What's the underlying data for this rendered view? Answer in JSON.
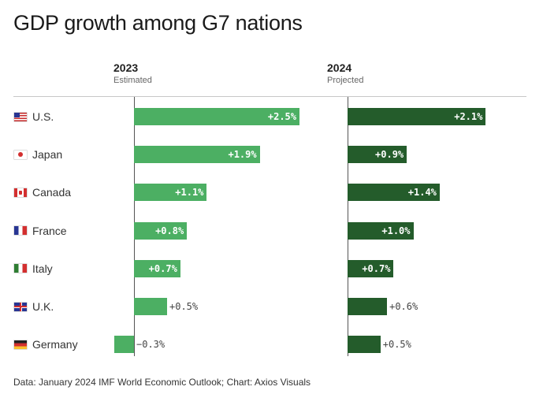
{
  "title": "GDP growth among G7 nations",
  "source": "Data: January 2024 IMF World Economic Outlook; Chart: Axios Visuals",
  "colors": {
    "bar_2023": "#4caf63",
    "bar_2024": "#245c2b"
  },
  "chart_data": {
    "type": "bar",
    "orientation": "horizontal",
    "title": "GDP growth among G7 nations",
    "categories": [
      "U.S.",
      "Japan",
      "Canada",
      "France",
      "Italy",
      "U.K.",
      "Germany"
    ],
    "flags": [
      "us-flag-icon",
      "japan-flag-icon",
      "canada-flag-icon",
      "france-flag-icon",
      "italy-flag-icon",
      "uk-flag-icon",
      "germany-flag-icon"
    ],
    "series": [
      {
        "name": "2023",
        "subtitle": "Estimated",
        "color": "#4caf63",
        "values": [
          2.5,
          1.9,
          1.1,
          0.8,
          0.7,
          0.5,
          -0.3
        ],
        "labels": [
          "+2.5%",
          "+1.9%",
          "+1.1%",
          "+0.8%",
          "+0.7%",
          "+0.5%",
          "−0.3%"
        ]
      },
      {
        "name": "2024",
        "subtitle": "Projected",
        "color": "#245c2b",
        "values": [
          2.1,
          0.9,
          1.4,
          1.0,
          0.7,
          0.6,
          0.5
        ],
        "labels": [
          "+2.1%",
          "+0.9%",
          "+1.4%",
          "+1.0%",
          "+0.7%",
          "+0.6%",
          "+0.5%"
        ]
      }
    ],
    "grid": false,
    "legend": "none"
  }
}
